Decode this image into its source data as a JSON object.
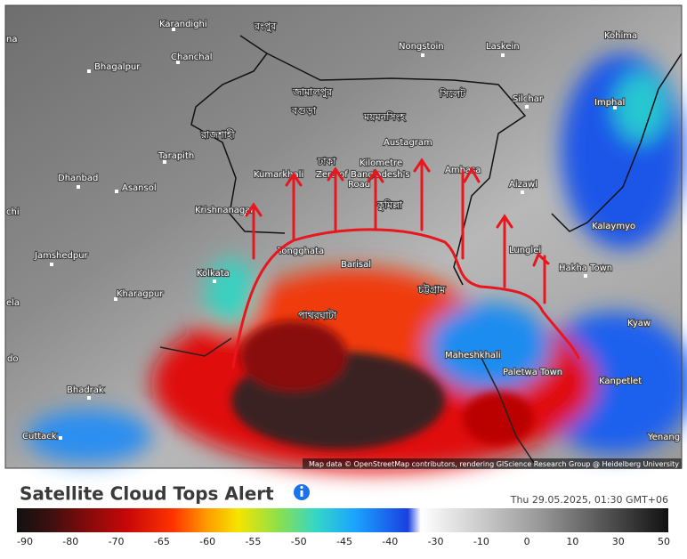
{
  "map": {
    "place_labels": [
      "Karandighi",
      "Chanchal",
      "Bhagalpur",
      "Tarapith",
      "Dhanbad",
      "Asansol",
      "Krishnanagar",
      "Kumarkhali",
      "Jamshedpur",
      "Kolkata",
      "Kharagpur",
      "Bhadrak",
      "Cuttack",
      "Nongstoin",
      "Laskein",
      "Kohima",
      "Silchar",
      "Imphal",
      "Austagram",
      "Kilometre",
      "Zero of Bangladesh's",
      "Road",
      "Ambasa",
      "Aizawl",
      "Kalaymyo",
      "Lunglei",
      "Hakha Town",
      "Tongghata",
      "Barisal",
      "Maheshkhali",
      "Paletwa Town",
      "Kanpetlet",
      "Kyaw",
      "Yenang",
      "na",
      "chi",
      "ela",
      "do"
    ],
    "bengali_labels": [
      "রংপুর",
      "জামালপুর",
      "বগুড়া",
      "রাজশাহী",
      "ময়মনসিংহ",
      "সিলেট",
      "ঢাকা",
      "কুমিল্লা",
      "চট্টগ্রাম",
      "পাথরঘাটা"
    ],
    "attribution": "Map data © OpenStreetMap contributors, rendering GIScience Research Group @ Heidelberg University"
  },
  "header": {
    "title": "Satellite Cloud Tops Alert",
    "timestamp": "Thu 29.05.2025, 01:30 GMT+06"
  },
  "legend": {
    "ticks": [
      "-90",
      "-80",
      "-70",
      "-65",
      "-60",
      "-55",
      "-50",
      "-45",
      "-40",
      "-30",
      "-10",
      "0",
      "10",
      "30",
      "50"
    ]
  }
}
